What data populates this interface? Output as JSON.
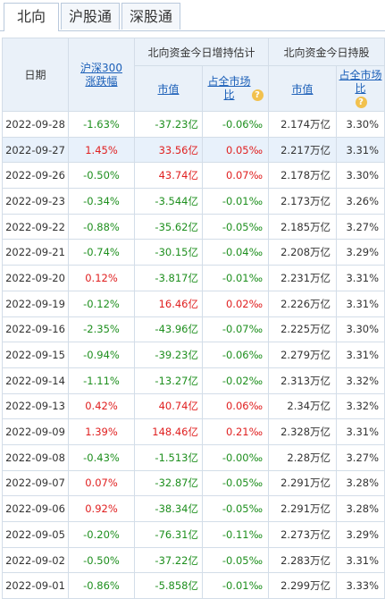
{
  "tabs": [
    {
      "label": "北向",
      "active": true
    },
    {
      "label": "沪股通",
      "active": false
    },
    {
      "label": "深股通",
      "active": false
    }
  ],
  "header": {
    "date": "日期",
    "index_change": "沪深300涨跌幅",
    "group_estimate": "北向资金今日增持估计",
    "group_holding": "北向资金今日持股",
    "market_value": "市值",
    "market_share": "占全市场比",
    "hold_value": "市值",
    "hold_share": "占全市场比",
    "help_icon": "question-icon"
  },
  "colors": {
    "up": "#e02020",
    "down": "#1e8f1e",
    "link": "#1b5fb8",
    "header_bg": "#eaf1f9",
    "row_highlight": "#e8f1fb"
  },
  "rows": [
    {
      "date": "2022-09-28",
      "change": "-1.63%",
      "est_value": "-37.23亿",
      "est_ratio": "-0.06‰",
      "hold_value": "2.174万亿",
      "hold_ratio": "3.30%",
      "dir": "down"
    },
    {
      "date": "2022-09-27",
      "change": "1.45%",
      "est_value": "33.56亿",
      "est_ratio": "0.05‰",
      "hold_value": "2.217万亿",
      "hold_ratio": "3.31%",
      "dir": "up"
    },
    {
      "date": "2022-09-26",
      "change": "-0.50%",
      "est_value": "43.74亿",
      "est_ratio": "0.07‰",
      "hold_value": "2.178万亿",
      "hold_ratio": "3.30%",
      "dir": "mixed"
    },
    {
      "date": "2022-09-23",
      "change": "-0.34%",
      "est_value": "-3.544亿",
      "est_ratio": "-0.01‰",
      "hold_value": "2.173万亿",
      "hold_ratio": "3.26%",
      "dir": "down"
    },
    {
      "date": "2022-09-22",
      "change": "-0.88%",
      "est_value": "-35.62亿",
      "est_ratio": "-0.05‰",
      "hold_value": "2.185万亿",
      "hold_ratio": "3.27%",
      "dir": "down"
    },
    {
      "date": "2022-09-21",
      "change": "-0.74%",
      "est_value": "-30.15亿",
      "est_ratio": "-0.04‰",
      "hold_value": "2.208万亿",
      "hold_ratio": "3.29%",
      "dir": "down"
    },
    {
      "date": "2022-09-20",
      "change": "0.12%",
      "est_value": "-3.817亿",
      "est_ratio": "-0.01‰",
      "hold_value": "2.231万亿",
      "hold_ratio": "3.31%",
      "dir": "mixed2"
    },
    {
      "date": "2022-09-19",
      "change": "-0.12%",
      "est_value": "16.46亿",
      "est_ratio": "0.02‰",
      "hold_value": "2.226万亿",
      "hold_ratio": "3.31%",
      "dir": "mixed"
    },
    {
      "date": "2022-09-16",
      "change": "-2.35%",
      "est_value": "-43.96亿",
      "est_ratio": "-0.07‰",
      "hold_value": "2.225万亿",
      "hold_ratio": "3.30%",
      "dir": "down"
    },
    {
      "date": "2022-09-15",
      "change": "-0.94%",
      "est_value": "-39.23亿",
      "est_ratio": "-0.06‰",
      "hold_value": "2.279万亿",
      "hold_ratio": "3.31%",
      "dir": "down"
    },
    {
      "date": "2022-09-14",
      "change": "-1.11%",
      "est_value": "-13.27亿",
      "est_ratio": "-0.02‰",
      "hold_value": "2.313万亿",
      "hold_ratio": "3.32%",
      "dir": "down"
    },
    {
      "date": "2022-09-13",
      "change": "0.42%",
      "est_value": "40.74亿",
      "est_ratio": "0.06‰",
      "hold_value": "2.34万亿",
      "hold_ratio": "3.32%",
      "dir": "up"
    },
    {
      "date": "2022-09-09",
      "change": "1.39%",
      "est_value": "148.46亿",
      "est_ratio": "0.21‰",
      "hold_value": "2.328万亿",
      "hold_ratio": "3.31%",
      "dir": "up"
    },
    {
      "date": "2022-09-08",
      "change": "-0.43%",
      "est_value": "-1.513亿",
      "est_ratio": "-0.00‰",
      "hold_value": "2.28万亿",
      "hold_ratio": "3.27%",
      "dir": "down"
    },
    {
      "date": "2022-09-07",
      "change": "0.07%",
      "est_value": "-32.87亿",
      "est_ratio": "-0.05‰",
      "hold_value": "2.291万亿",
      "hold_ratio": "3.28%",
      "dir": "mixed2"
    },
    {
      "date": "2022-09-06",
      "change": "0.92%",
      "est_value": "-38.34亿",
      "est_ratio": "-0.05‰",
      "hold_value": "2.291万亿",
      "hold_ratio": "3.28%",
      "dir": "mixed2"
    },
    {
      "date": "2022-09-05",
      "change": "-0.20%",
      "est_value": "-76.31亿",
      "est_ratio": "-0.11‰",
      "hold_value": "2.273万亿",
      "hold_ratio": "3.29%",
      "dir": "down"
    },
    {
      "date": "2022-09-02",
      "change": "-0.50%",
      "est_value": "-37.22亿",
      "est_ratio": "-0.05‰",
      "hold_value": "2.283万亿",
      "hold_ratio": "3.31%",
      "dir": "down"
    },
    {
      "date": "2022-09-01",
      "change": "-0.86%",
      "est_value": "-5.858亿",
      "est_ratio": "-0.01‰",
      "hold_value": "2.299万亿",
      "hold_ratio": "3.33%",
      "dir": "down"
    }
  ],
  "highlighted_row": 1
}
